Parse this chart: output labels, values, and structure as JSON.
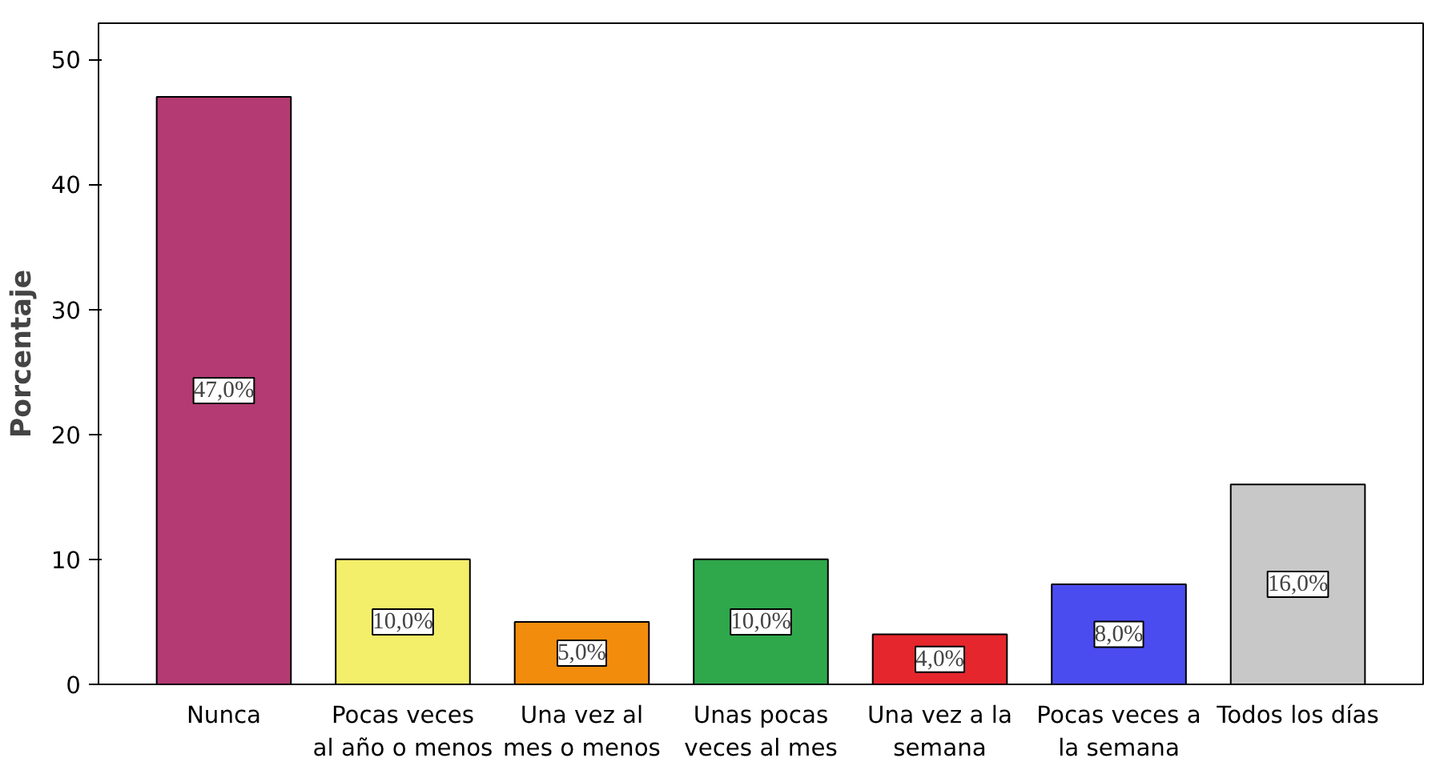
{
  "chart_data": {
    "type": "bar",
    "ylabel": "Porcentaje",
    "categories": [
      "Nunca",
      "Pocas veces\nal año o menos",
      "Una vez al\nmes o menos",
      "Unas pocas\nveces al mes",
      "Una vez a la\nsemana",
      "Pocas veces a\nla semana",
      "Todos los días"
    ],
    "values": [
      47.0,
      10.0,
      5.0,
      10.0,
      4.0,
      8.0,
      16.0
    ],
    "colors": [
      "#b33a72",
      "#f4ef6a",
      "#f28c0c",
      "#2fa84c",
      "#e5262d",
      "#4b4cef",
      "#c8c8c8"
    ],
    "value_labels": [
      "47,0%",
      "10,0%",
      "5,0%",
      "10,0%",
      "4,0%",
      "8,0%",
      "16,0%"
    ],
    "ylim": [
      0,
      52.9
    ],
    "yticks": [
      0,
      10,
      20,
      30,
      40,
      50
    ],
    "grid": false
  }
}
